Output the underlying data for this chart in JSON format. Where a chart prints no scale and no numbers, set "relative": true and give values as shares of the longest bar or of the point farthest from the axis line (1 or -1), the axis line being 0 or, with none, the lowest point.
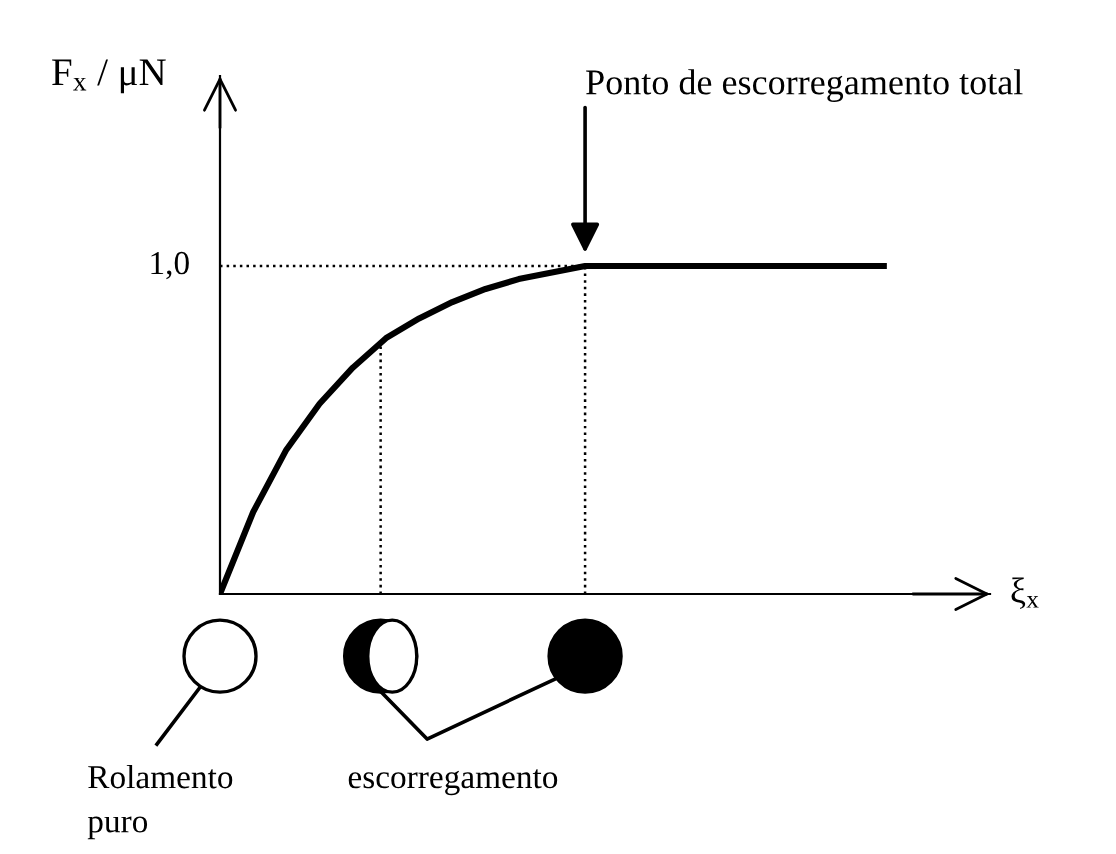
{
  "chart_data": {
    "type": "line",
    "relative": true,
    "ylabel": "F$_{x}$ / μN",
    "xlabel": "ξ$_{x}$",
    "categories": [
      null,
      null,
      null,
      null,
      null,
      null,
      null,
      null,
      null,
      null,
      null,
      null,
      null,
      null,
      null,
      null,
      null,
      null,
      null,
      null,
      null
    ],
    "series": [
      {
        "color": "#000000",
        "values": [
          0,
          0.25,
          0.44,
          0.58,
          0.69,
          0.78,
          0.84,
          0.89,
          0.93,
          0.96,
          0.98,
          1.0,
          1.0,
          1.0,
          1.0,
          1.0,
          1.0,
          1.0,
          1.0,
          1.0,
          1.0
        ]
      }
    ],
    "ref_lines": [
      {
        "axis": "y",
        "value": 1.0,
        "label": "1,0",
        "line_style": "dotted"
      }
    ],
    "annotations": [
      "Ponto de escorregamento total",
      "Rolamento\npuro",
      "escorregamento"
    ],
    "legend": false,
    "marker": "none",
    "line_style": "solid"
  }
}
